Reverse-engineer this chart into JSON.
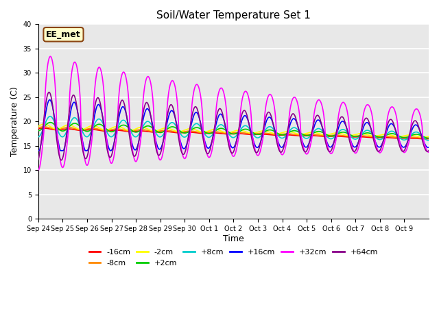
{
  "title": "Soil/Water Temperature Set 1",
  "xlabel": "Time",
  "ylabel": "Temperature (C)",
  "ylim": [
    0,
    40
  ],
  "yticks": [
    0,
    5,
    10,
    15,
    20,
    25,
    30,
    35,
    40
  ],
  "bg_color": "#e8e8e8",
  "annotation": "EE_met",
  "annotation_box_color": "#ffffcc",
  "annotation_border_color": "#8B4513",
  "series": {
    "-16cm": {
      "color": "#ff0000",
      "lw": 1.2
    },
    "-8cm": {
      "color": "#ff8800",
      "lw": 1.2
    },
    "-2cm": {
      "color": "#ffff00",
      "lw": 1.2
    },
    "+2cm": {
      "color": "#00cc00",
      "lw": 1.2
    },
    "+8cm": {
      "color": "#00cccc",
      "lw": 1.2
    },
    "+16cm": {
      "color": "#0000ff",
      "lw": 1.2
    },
    "+32cm": {
      "color": "#ff00ff",
      "lw": 1.2
    },
    "+64cm": {
      "color": "#880088",
      "lw": 1.2
    }
  },
  "x_tick_labels": [
    "Sep 24",
    "Sep 25",
    "Sep 26",
    "Sep 27",
    "Sep 28",
    "Sep 29",
    "Sep 30",
    "Oct 1",
    "Oct 2",
    "Oct 3",
    "Oct 4",
    "Oct 5",
    "Oct 6",
    "Oct 7",
    "Oct 8",
    "Oct 9"
  ],
  "n_days": 16,
  "legend_order": [
    "-16cm",
    "-8cm",
    "-2cm",
    "+2cm",
    "+8cm",
    "+16cm",
    "+32cm",
    "+64cm"
  ]
}
